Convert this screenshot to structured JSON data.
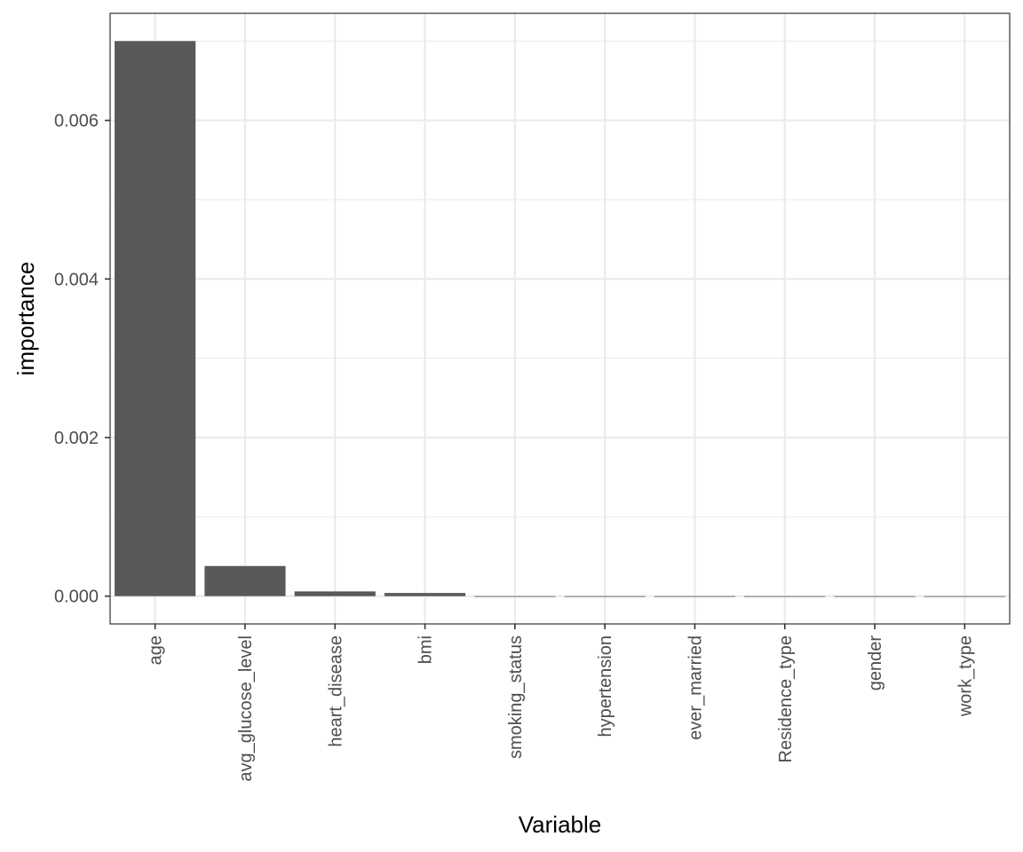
{
  "chart_data": {
    "type": "bar",
    "xlabel": "Variable",
    "ylabel": "importance",
    "categories": [
      "age",
      "avg_glucose_level",
      "heart_disease",
      "bmi",
      "smoking_status",
      "hypertension",
      "ever_married",
      "Residence_type",
      "gender",
      "work_type"
    ],
    "values": [
      0.007,
      0.00038,
      6e-05,
      4e-05,
      0.0,
      0.0,
      0.0,
      0.0,
      0.0,
      -5e-06
    ],
    "ylim": [
      -0.00035,
      0.00735
    ],
    "y_ticks": [
      0.0,
      0.002,
      0.004,
      0.006
    ],
    "y_tick_labels": [
      "0.000",
      "0.002",
      "0.004",
      "0.006"
    ],
    "grid": true,
    "theme": "bw",
    "colors": {
      "bar": "#595959",
      "grid": "#ebebeb",
      "panel_border": "#333333",
      "tick_text": "#4d4d4d"
    }
  }
}
